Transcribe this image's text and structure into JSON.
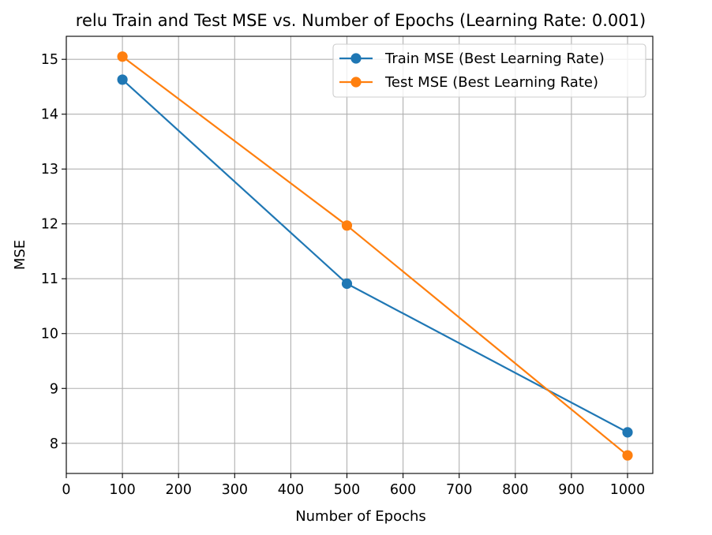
{
  "chart_data": {
    "type": "line",
    "title": "relu Train and Test MSE vs. Number of Epochs (Learning Rate: 0.001)",
    "xlabel": "Number of Epochs",
    "ylabel": "MSE",
    "xlim": [
      0,
      1045
    ],
    "ylim": [
      7.45,
      15.42
    ],
    "xticks": [
      0,
      100,
      200,
      300,
      400,
      500,
      600,
      700,
      800,
      900,
      1000
    ],
    "yticks": [
      8,
      9,
      10,
      11,
      12,
      13,
      14,
      15
    ],
    "grid": true,
    "legend_position": "upper right",
    "x": [
      100,
      500,
      1000
    ],
    "series": [
      {
        "name": "Train MSE (Best Learning Rate)",
        "color": "#1f77b4",
        "marker": "circle",
        "values": [
          14.63,
          10.91,
          8.2
        ]
      },
      {
        "name": "Test MSE (Best Learning Rate)",
        "color": "#ff7f0e",
        "marker": "circle",
        "values": [
          15.05,
          11.97,
          7.78
        ]
      }
    ]
  }
}
